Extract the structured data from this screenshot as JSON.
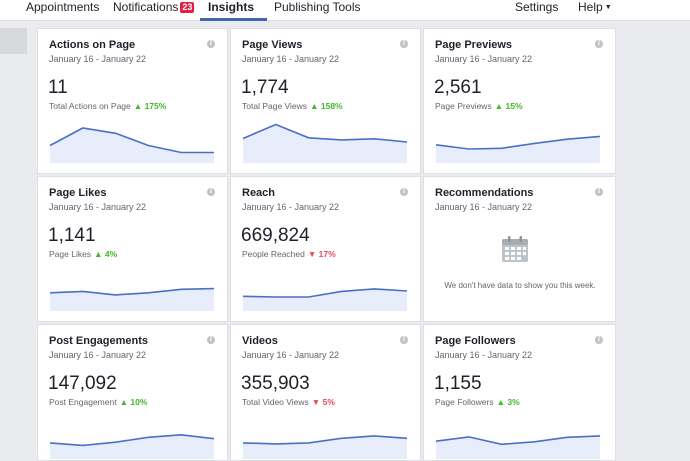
{
  "nav": {
    "appointments": "Appointments",
    "notifications": "Notifications",
    "notifications_count": "23",
    "insights": "Insights",
    "publishing_tools": "Publishing Tools",
    "settings": "Settings",
    "help": "Help"
  },
  "colors": {
    "accent": "#4267b2",
    "positive": "#42b72a",
    "negative": "#e4495a",
    "line": "#4a6fc7",
    "fill": "#e7edfa"
  },
  "cards": [
    {
      "title": "Actions on Page",
      "date": "January 16 - January 22",
      "value": "11",
      "label": "Total Actions on Page",
      "delta": "175%",
      "direction": "up",
      "trend": [
        5,
        10,
        8.5,
        5,
        3,
        3
      ]
    },
    {
      "title": "Page Views",
      "date": "January 16 - January 22",
      "value": "1,774",
      "label": "Total Page Views",
      "delta": "158%",
      "direction": "up",
      "trend": [
        7,
        11,
        7.2,
        6.6,
        6.9,
        6
      ]
    },
    {
      "title": "Page Previews",
      "date": "January 16 - January 22",
      "value": "2,561",
      "label": "Page Previews",
      "delta": "15%",
      "direction": "up",
      "trend": [
        5.2,
        4,
        4.2,
        5.6,
        6.8,
        7.6
      ]
    },
    {
      "title": "Page Likes",
      "date": "January 16 - January 22",
      "value": "1,141",
      "label": "Page Likes",
      "delta": "4%",
      "direction": "up",
      "trend": [
        5.2,
        5.6,
        4.6,
        5.2,
        6.2,
        6.4
      ]
    },
    {
      "title": "Reach",
      "date": "January 16 - January 22",
      "value": "669,824",
      "label": "People Reached",
      "delta": "17%",
      "direction": "down",
      "trend": [
        4.2,
        4,
        4,
        5.6,
        6.3,
        5.7
      ]
    },
    {
      "title": "Recommendations",
      "date": "January 16 - January 22",
      "empty": true,
      "empty_text": "We don't have data to show you this week.",
      "empty_icon": "calendar-icon"
    },
    {
      "title": "Post Engagements",
      "date": "January 16 - January 22",
      "value": "147,092",
      "label": "Post Engagement",
      "delta": "10%",
      "direction": "up",
      "trend": [
        4.6,
        3.9,
        4.8,
        6.2,
        6.9,
        5.8
      ]
    },
    {
      "title": "Videos",
      "date": "January 16 - January 22",
      "value": "355,903",
      "label": "Total Video Views",
      "delta": "5%",
      "direction": "down",
      "trend": [
        4.6,
        4.3,
        4.6,
        5.9,
        6.6,
        5.9
      ]
    },
    {
      "title": "Page Followers",
      "date": "January 16 - January 22",
      "value": "1,155",
      "label": "Page Followers",
      "delta": "3%",
      "direction": "up",
      "trend": [
        5.1,
        6.3,
        4.2,
        4.9,
        6.2,
        6.6
      ]
    }
  ]
}
